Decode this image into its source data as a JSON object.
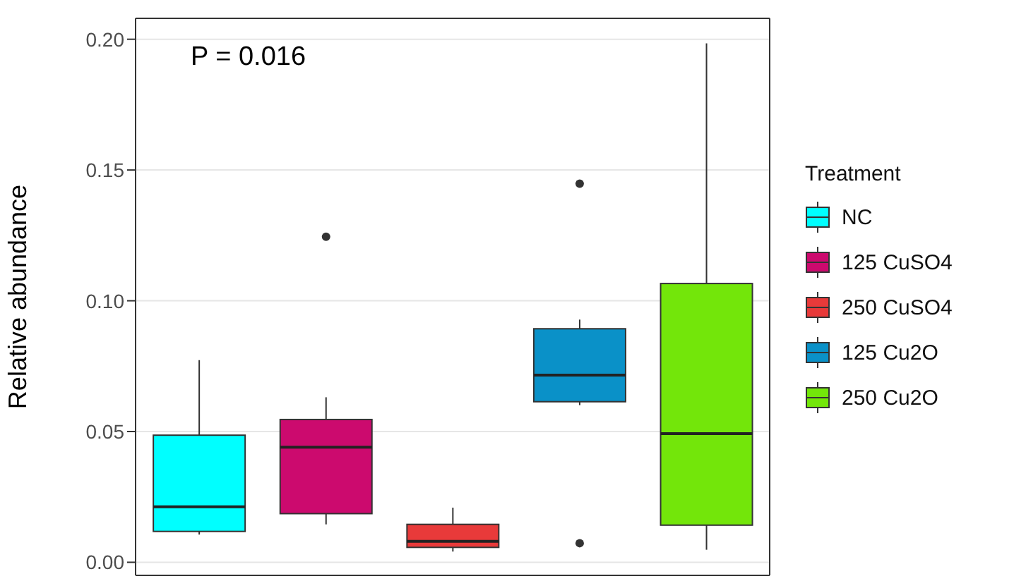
{
  "chart_data": {
    "type": "box",
    "ylabel": "Relative abundance",
    "legend_title": "Treatment",
    "annotations": [
      "P = 0.016"
    ],
    "categories": [
      null,
      null,
      null,
      null,
      null
    ],
    "series": [
      {
        "name": "NC",
        "color": "#00ffff",
        "boxes": [
          {
            "low": 0.0106,
            "q1": 0.0118,
            "median": 0.0212,
            "q3": 0.0486,
            "high": 0.0773
          },
          null,
          null,
          null,
          null
        ]
      },
      {
        "name": "125 CuSO4",
        "color": "#cc0a6e",
        "boxes": [
          null,
          {
            "low": 0.0145,
            "q1": 0.0186,
            "median": 0.044,
            "q3": 0.0546,
            "high": 0.0631,
            "outliers": [
              0.1245
            ]
          },
          null,
          null,
          null
        ]
      },
      {
        "name": "250 CuSO4",
        "color": "#e83a3a",
        "boxes": [
          null,
          null,
          {
            "low": 0.0041,
            "q1": 0.0057,
            "median": 0.008,
            "q3": 0.0145,
            "high": 0.0209
          },
          null,
          null
        ]
      },
      {
        "name": "125 Cu2O",
        "color": "#0a91c8",
        "boxes": [
          null,
          null,
          null,
          {
            "low": 0.0601,
            "q1": 0.0614,
            "median": 0.0716,
            "q3": 0.0893,
            "high": 0.0928,
            "outliers": [
              0.1448,
              0.0073
            ]
          },
          null
        ]
      },
      {
        "name": "250 Cu2O",
        "color": "#73e60a",
        "boxes": [
          null,
          null,
          null,
          null,
          {
            "low": 0.0048,
            "q1": 0.0142,
            "median": 0.0492,
            "q3": 0.1066,
            "high": 0.1984
          }
        ]
      }
    ],
    "ylim": [
      -0.005,
      0.208
    ],
    "yticks": [
      {
        "value": 0,
        "label": "0.00"
      },
      {
        "value": 0.05,
        "label": "0.05"
      },
      {
        "value": 0.1,
        "label": "0.10"
      },
      {
        "value": 0.15,
        "label": "0.15"
      },
      {
        "value": 0.2,
        "label": "0.20"
      }
    ],
    "grid": true,
    "legend": "right",
    "tick_labels": "y"
  }
}
